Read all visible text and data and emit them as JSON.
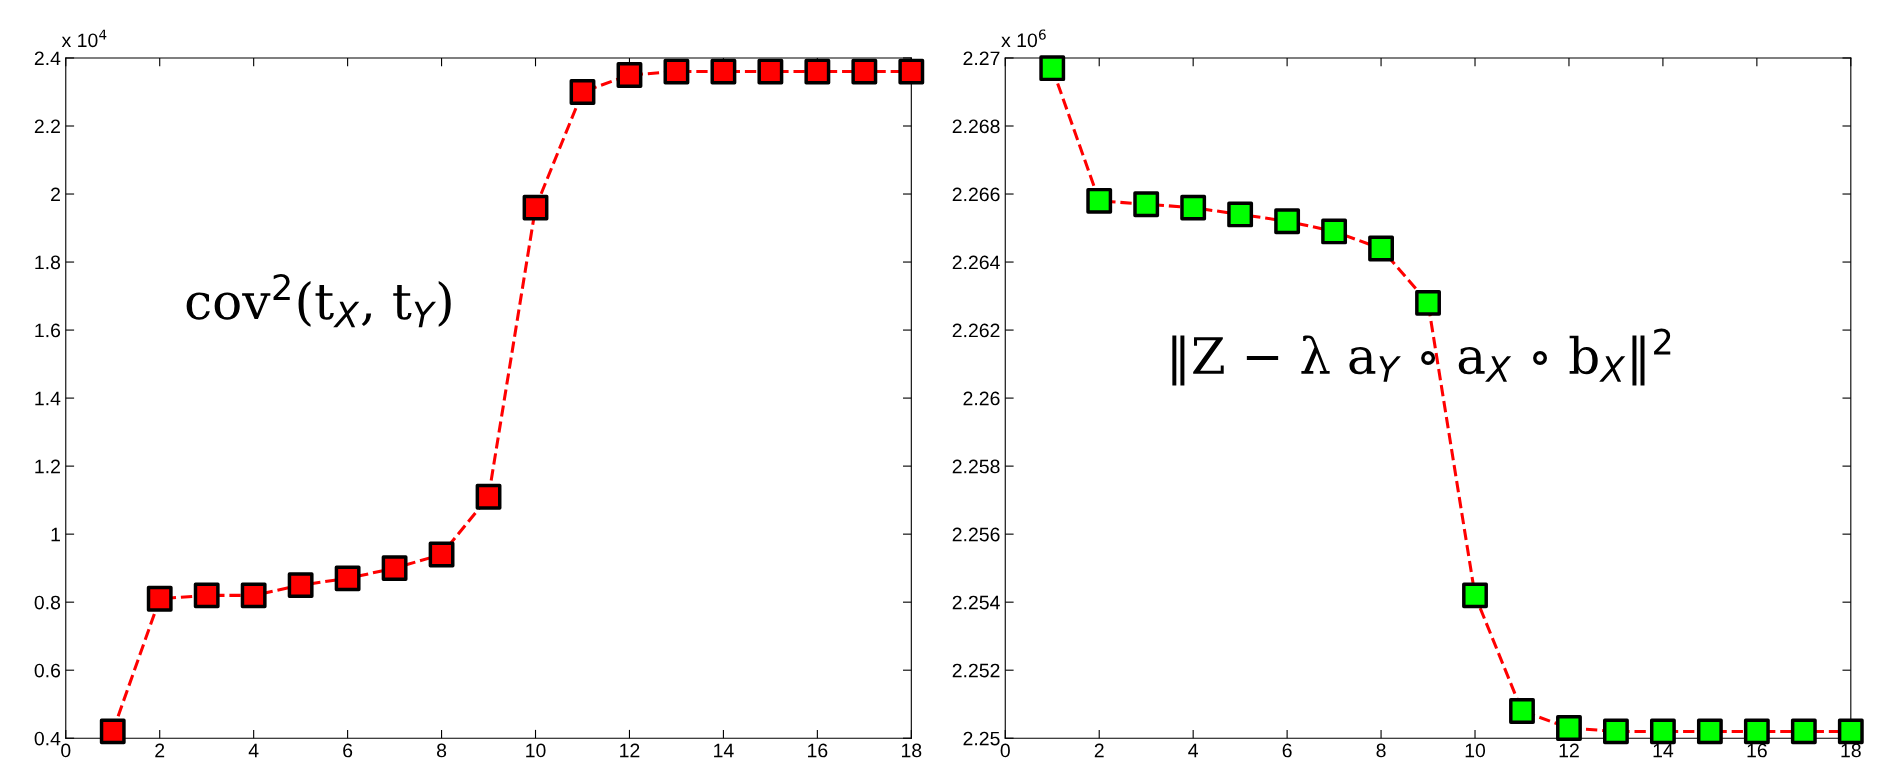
{
  "chart_data": [
    {
      "type": "line",
      "x": [
        1,
        2,
        3,
        4,
        5,
        6,
        7,
        8,
        9,
        10,
        11,
        12,
        13,
        14,
        15,
        16,
        17,
        18
      ],
      "series": [
        {
          "color": "#ff0000",
          "colors": [
            "#ff0000",
            "#ff0000",
            "#ff0000",
            "#ff0000",
            "#ff0000",
            "#ff0000",
            "#ff0000",
            "#ff0000",
            "#ff0000",
            "#ff0000",
            "#ff0000",
            "#ff0000",
            "#ff0000",
            "#ff0000",
            "#ff0000",
            "#ff0000",
            "#ff0000",
            "#ff0000"
          ],
          "values": [
            0.42,
            0.81,
            0.82,
            0.82,
            0.85,
            0.87,
            0.9,
            0.94,
            1.11,
            1.96,
            2.3,
            2.35,
            2.36,
            2.36,
            2.36,
            2.36,
            2.36,
            2.36
          ]
        }
      ],
      "xlim": [
        0,
        18
      ],
      "xticks": [
        0,
        2,
        4,
        6,
        8,
        10,
        12,
        14,
        16,
        18
      ],
      "ylim": [
        0.4,
        2.4
      ],
      "yticks": [
        0.4,
        0.6,
        0.8,
        1,
        1.2,
        1.4,
        1.6,
        1.8,
        2,
        2.2,
        2.4
      ],
      "marker": "square",
      "line_style": "dashed",
      "grid": false,
      "legend": false,
      "annotations": [
        "x 10$^{4}$",
        "cov$^{2}$(t$_{X}$, t$_{Y}$)"
      ]
    },
    {
      "type": "line",
      "x": [
        1,
        2,
        3,
        4,
        5,
        6,
        7,
        8,
        9,
        10,
        11,
        12,
        13,
        14,
        15,
        16,
        17,
        18
      ],
      "series": [
        {
          "color": "#ff0000",
          "colors": [
            "#00ff00",
            "#00ff00",
            "#00ff00",
            "#00ff00",
            "#00ff00",
            "#00ff00",
            "#00ff00",
            "#00ff00",
            "#00ff00",
            "#00ff00",
            "#00ff00",
            "#00ff00",
            "#00ff00",
            "#00ff00",
            "#00ff00",
            "#00ff00",
            "#00ff00",
            "#00ff00"
          ],
          "values": [
            2.2697,
            2.2658,
            2.2657,
            2.2656,
            2.2654,
            2.2652,
            2.2649,
            2.2644,
            2.2628,
            2.2542,
            2.2508,
            2.2503,
            2.2502,
            2.2502,
            2.2502,
            2.2502,
            2.2502,
            2.2502
          ]
        }
      ],
      "xlim": [
        0,
        18
      ],
      "xticks": [
        0,
        2,
        4,
        6,
        8,
        10,
        12,
        14,
        16,
        18
      ],
      "ylim": [
        2.25,
        2.27
      ],
      "yticks": [
        2.25,
        2.252,
        2.254,
        2.256,
        2.258,
        2.26,
        2.262,
        2.264,
        2.266,
        2.268,
        2.27
      ],
      "marker": "square",
      "line_style": "dashed",
      "grid": false,
      "legend": false,
      "annotations": [
        "x 10$^{6}$",
        "‖Z − λ a$_{Y}$ ∘ a$_{X}$ ∘ b$_{X}$‖$^{2}$"
      ]
    }
  ]
}
